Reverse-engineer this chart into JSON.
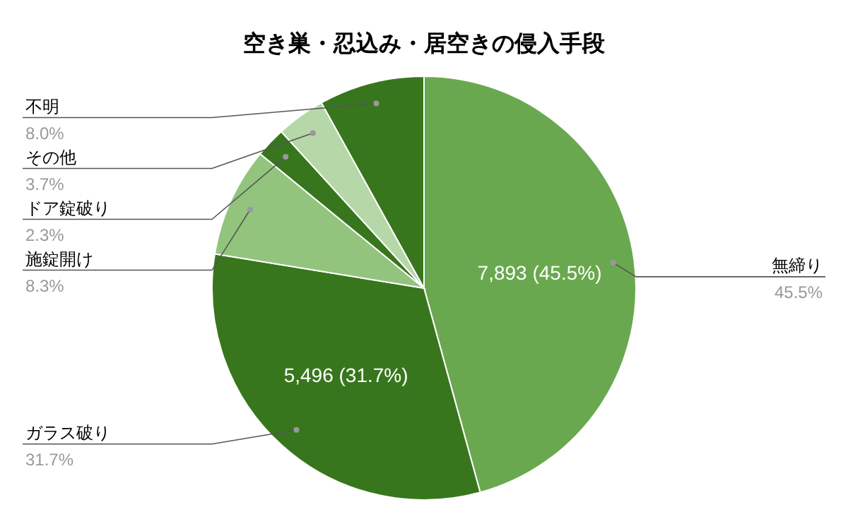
{
  "chart_data": {
    "type": "pie",
    "title": "空き巣・忍込み・居空きの侵入手段",
    "categories": [
      "無締り",
      "ガラス破り",
      "施錠開け",
      "ドア錠破り",
      "その他",
      "不明"
    ],
    "values": [
      45.5,
      31.7,
      8.3,
      2.3,
      3.7,
      8.0
    ],
    "colors": [
      "#6aa84f",
      "#38761d",
      "#93c47d",
      "#38761d",
      "#b6d7a8",
      "#38761d"
    ],
    "value_labels": [
      "45.5%",
      "31.7%",
      "8.3%",
      "2.3%",
      "3.7%",
      "8.0%"
    ],
    "annotations": [
      {
        "text": "7,893 (45.5%)",
        "x": "無締り"
      },
      {
        "text": "5,496 (31.7%)",
        "x": "ガラス破り"
      }
    ]
  }
}
